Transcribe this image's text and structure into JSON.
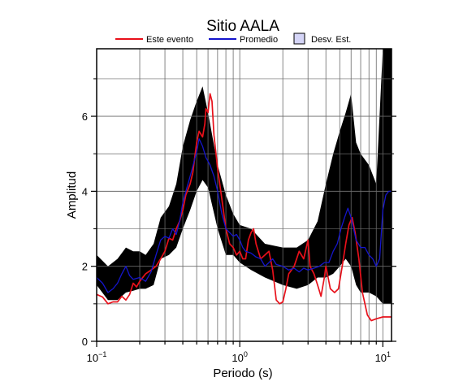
{
  "chart_data": {
    "type": "line",
    "title": "Sitio AALA",
    "xlabel": "Periodo (s)",
    "ylabel": "Amplitud",
    "x_scale": "log",
    "xlim": [
      0.1,
      11.5
    ],
    "ylim": [
      0,
      7.8
    ],
    "x_tick_labels": [
      {
        "value": 0.1,
        "base": "10",
        "exp": "−1"
      },
      {
        "value": 1,
        "base": "10",
        "exp": "0"
      },
      {
        "value": 10,
        "base": "10",
        "exp": "1"
      }
    ],
    "y_ticks": [
      0,
      2,
      4,
      6
    ],
    "grid": true,
    "legend": {
      "position": "top",
      "entries": [
        {
          "label": "Este evento",
          "color": "#e8101a",
          "kind": "line"
        },
        {
          "label": "Promedio",
          "color": "#1515cc",
          "kind": "line"
        },
        {
          "label": "Desv. Est.",
          "color": "#d5d5f7",
          "kind": "patch"
        }
      ]
    },
    "colors": {
      "event": "#e8101a",
      "mean": "#1515cc",
      "band": "#d5d5f7"
    },
    "series": [
      {
        "name": "Este evento",
        "role": "event",
        "points": [
          [
            0.1,
            1.25
          ],
          [
            0.11,
            1.18
          ],
          [
            0.12,
            1.0
          ],
          [
            0.13,
            1.05
          ],
          [
            0.14,
            1.05
          ],
          [
            0.15,
            1.2
          ],
          [
            0.16,
            1.1
          ],
          [
            0.17,
            1.25
          ],
          [
            0.18,
            1.55
          ],
          [
            0.19,
            1.45
          ],
          [
            0.2,
            1.6
          ],
          [
            0.22,
            1.8
          ],
          [
            0.24,
            1.9
          ],
          [
            0.26,
            2.0
          ],
          [
            0.28,
            2.2
          ],
          [
            0.3,
            2.4
          ],
          [
            0.32,
            2.75
          ],
          [
            0.34,
            2.7
          ],
          [
            0.36,
            3.0
          ],
          [
            0.38,
            3.2
          ],
          [
            0.4,
            3.5
          ],
          [
            0.42,
            3.9
          ],
          [
            0.45,
            4.2
          ],
          [
            0.47,
            4.5
          ],
          [
            0.5,
            5.3
          ],
          [
            0.52,
            5.6
          ],
          [
            0.55,
            5.45
          ],
          [
            0.57,
            5.8
          ],
          [
            0.58,
            6.2
          ],
          [
            0.6,
            6.1
          ],
          [
            0.62,
            6.6
          ],
          [
            0.64,
            6.4
          ],
          [
            0.66,
            5.5
          ],
          [
            0.7,
            4.6
          ],
          [
            0.75,
            3.8
          ],
          [
            0.8,
            3.0
          ],
          [
            0.85,
            2.6
          ],
          [
            0.9,
            2.5
          ],
          [
            0.95,
            2.3
          ],
          [
            1.0,
            2.4
          ],
          [
            1.05,
            2.2
          ],
          [
            1.1,
            2.2
          ],
          [
            1.15,
            2.7
          ],
          [
            1.2,
            2.9
          ],
          [
            1.25,
            3.0
          ],
          [
            1.3,
            2.6
          ],
          [
            1.4,
            2.2
          ],
          [
            1.5,
            2.3
          ],
          [
            1.6,
            2.4
          ],
          [
            1.7,
            1.9
          ],
          [
            1.8,
            1.1
          ],
          [
            1.9,
            1.0
          ],
          [
            2.0,
            1.05
          ],
          [
            2.1,
            1.4
          ],
          [
            2.2,
            1.8
          ],
          [
            2.4,
            2.0
          ],
          [
            2.6,
            2.4
          ],
          [
            2.8,
            2.2
          ],
          [
            3.0,
            2.7
          ],
          [
            3.1,
            2.0
          ],
          [
            3.3,
            1.8
          ],
          [
            3.5,
            1.5
          ],
          [
            3.7,
            1.2
          ],
          [
            3.9,
            1.7
          ],
          [
            4.0,
            2.0
          ],
          [
            4.3,
            1.4
          ],
          [
            4.6,
            1.3
          ],
          [
            4.9,
            1.4
          ],
          [
            5.2,
            2.0
          ],
          [
            5.5,
            2.6
          ],
          [
            5.8,
            3.1
          ],
          [
            6.1,
            3.3
          ],
          [
            6.4,
            2.9
          ],
          [
            6.8,
            2.2
          ],
          [
            7.2,
            1.3
          ],
          [
            7.8,
            0.7
          ],
          [
            8.3,
            0.55
          ],
          [
            9.0,
            0.6
          ],
          [
            10.0,
            0.65
          ],
          [
            11.5,
            0.65
          ]
        ]
      },
      {
        "name": "Promedio",
        "role": "mean",
        "points": [
          [
            0.1,
            1.7
          ],
          [
            0.11,
            1.55
          ],
          [
            0.12,
            1.3
          ],
          [
            0.13,
            1.4
          ],
          [
            0.14,
            1.55
          ],
          [
            0.15,
            1.8
          ],
          [
            0.16,
            2.0
          ],
          [
            0.17,
            1.75
          ],
          [
            0.18,
            1.65
          ],
          [
            0.2,
            1.7
          ],
          [
            0.22,
            1.6
          ],
          [
            0.24,
            1.85
          ],
          [
            0.26,
            2.3
          ],
          [
            0.28,
            2.7
          ],
          [
            0.3,
            2.8
          ],
          [
            0.32,
            2.75
          ],
          [
            0.34,
            3.0
          ],
          [
            0.36,
            2.85
          ],
          [
            0.38,
            3.2
          ],
          [
            0.4,
            3.7
          ],
          [
            0.42,
            4.0
          ],
          [
            0.45,
            4.4
          ],
          [
            0.48,
            4.8
          ],
          [
            0.5,
            5.05
          ],
          [
            0.52,
            5.4
          ],
          [
            0.55,
            5.2
          ],
          [
            0.58,
            4.9
          ],
          [
            0.6,
            4.8
          ],
          [
            0.62,
            4.7
          ],
          [
            0.66,
            4.4
          ],
          [
            0.7,
            4.0
          ],
          [
            0.75,
            3.4
          ],
          [
            0.8,
            3.0
          ],
          [
            0.85,
            2.9
          ],
          [
            0.9,
            2.8
          ],
          [
            0.95,
            2.85
          ],
          [
            1.0,
            2.7
          ],
          [
            1.05,
            2.5
          ],
          [
            1.1,
            2.4
          ],
          [
            1.2,
            2.35
          ],
          [
            1.3,
            2.25
          ],
          [
            1.4,
            2.2
          ],
          [
            1.5,
            2.0
          ],
          [
            1.6,
            2.1
          ],
          [
            1.7,
            2.2
          ],
          [
            1.8,
            2.05
          ],
          [
            2.0,
            2.0
          ],
          [
            2.2,
            1.9
          ],
          [
            2.4,
            1.95
          ],
          [
            2.6,
            1.85
          ],
          [
            2.8,
            1.95
          ],
          [
            3.0,
            1.9
          ],
          [
            3.3,
            1.95
          ],
          [
            3.6,
            2.0
          ],
          [
            3.9,
            2.1
          ],
          [
            4.2,
            2.1
          ],
          [
            4.5,
            2.4
          ],
          [
            4.8,
            2.6
          ],
          [
            5.1,
            3.0
          ],
          [
            5.4,
            3.3
          ],
          [
            5.7,
            3.55
          ],
          [
            6.0,
            3.3
          ],
          [
            6.5,
            2.7
          ],
          [
            7.0,
            2.5
          ],
          [
            7.5,
            2.5
          ],
          [
            8.0,
            2.3
          ],
          [
            8.5,
            2.2
          ],
          [
            9.0,
            2.0
          ],
          [
            9.5,
            2.2
          ],
          [
            10.0,
            3.5
          ],
          [
            10.5,
            3.9
          ],
          [
            11.0,
            4.0
          ],
          [
            11.5,
            4.0
          ]
        ]
      }
    ],
    "band": {
      "name": "Desv. Est.",
      "role": "std",
      "points": [
        [
          0.1,
          1.5,
          2.3
        ],
        [
          0.12,
          1.1,
          2.0
        ],
        [
          0.14,
          1.1,
          2.2
        ],
        [
          0.16,
          1.3,
          2.5
        ],
        [
          0.18,
          1.35,
          2.4
        ],
        [
          0.2,
          1.4,
          2.4
        ],
        [
          0.22,
          1.4,
          2.3
        ],
        [
          0.25,
          1.5,
          2.6
        ],
        [
          0.28,
          2.2,
          3.3
        ],
        [
          0.32,
          2.3,
          3.6
        ],
        [
          0.36,
          2.5,
          4.2
        ],
        [
          0.4,
          3.0,
          5.2
        ],
        [
          0.45,
          3.5,
          5.9
        ],
        [
          0.5,
          4.0,
          6.4
        ],
        [
          0.55,
          4.3,
          6.8
        ],
        [
          0.6,
          4.1,
          6.1
        ],
        [
          0.7,
          3.0,
          4.7
        ],
        [
          0.8,
          2.3,
          3.9
        ],
        [
          0.9,
          2.3,
          3.4
        ],
        [
          1.0,
          2.1,
          3.1
        ],
        [
          1.2,
          1.9,
          3.0
        ],
        [
          1.5,
          1.7,
          2.6
        ],
        [
          2.0,
          1.5,
          2.5
        ],
        [
          2.5,
          1.4,
          2.5
        ],
        [
          3.0,
          1.5,
          2.7
        ],
        [
          3.5,
          1.7,
          3.2
        ],
        [
          4.0,
          1.7,
          4.2
        ],
        [
          4.5,
          1.8,
          5.0
        ],
        [
          5.0,
          2.0,
          5.6
        ],
        [
          5.5,
          2.2,
          6.1
        ],
        [
          6.0,
          2.0,
          6.6
        ],
        [
          6.5,
          1.5,
          5.3
        ],
        [
          7.0,
          1.3,
          5.0
        ],
        [
          8.0,
          1.3,
          4.7
        ],
        [
          9.0,
          1.2,
          4.2
        ],
        [
          10.0,
          1.0,
          7.8
        ],
        [
          11.5,
          1.0,
          7.8
        ]
      ]
    }
  }
}
